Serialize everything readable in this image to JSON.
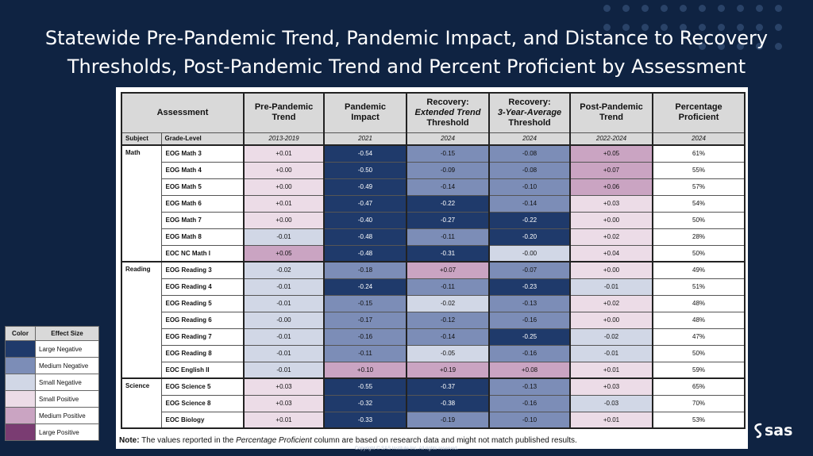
{
  "title_line1": "Statewide Pre-Pandemic Trend, Pandemic Impact, and Distance to Recovery",
  "title_line2": "Thresholds, Post-Pandemic Trend and Percent Proficient  by Assessment",
  "colors": {
    "background": "#0f2342",
    "Large Negative": "#1f3a6b",
    "Medium Negative": "#7c8db7",
    "Small Negative": "#d1d7e6",
    "Small Positive": "#ecdce7",
    "Medium Positive": "#caa4c2",
    "Large Positive": "#7a3c72"
  },
  "legend": {
    "header_color": "Color",
    "header_effect": "Effect Size",
    "items": [
      {
        "label": "Large Negative",
        "color": "#1f3a6b"
      },
      {
        "label": "Medium Negative",
        "color": "#7c8db7"
      },
      {
        "label": "Small Negative",
        "color": "#d1d7e6"
      },
      {
        "label": "Small Positive",
        "color": "#ecdce7"
      },
      {
        "label": "Medium Positive",
        "color": "#caa4c2"
      },
      {
        "label": "Large Positive",
        "color": "#7a3c72"
      }
    ]
  },
  "table": {
    "assessment_header": "Assessment",
    "subject_header": "Subject",
    "grade_header": "Grade-Level",
    "col_headers": [
      {
        "line1": "Pre-Pandemic",
        "line2": "",
        "line3": "Trend",
        "year": "2013-2019"
      },
      {
        "line1": "Pandemic",
        "line2": "",
        "line3": "Impact",
        "year": "2021"
      },
      {
        "line1": "Recovery:",
        "line2": "Extended Trend",
        "line3": "Threshold",
        "year": "2024"
      },
      {
        "line1": "Recovery:",
        "line2": "3-Year-Average",
        "line3": "Threshold",
        "year": "2024"
      },
      {
        "line1": "Post-Pandemic",
        "line2": "",
        "line3": "Trend",
        "year": "2022-2024"
      },
      {
        "line1": "Percentage",
        "line2": "",
        "line3": "Proficient",
        "year": "2024"
      }
    ]
  },
  "chart_data": {
    "type": "table",
    "columns": [
      "Pre-Pandemic Trend",
      "Pandemic Impact",
      "Recovery: Extended Trend Threshold",
      "Recovery: 3-Year-Average Threshold",
      "Post-Pandemic Trend",
      "Percentage Proficient"
    ],
    "groups": [
      {
        "subject": "Math",
        "rows": [
          {
            "grade": "EOG Math 3",
            "values": [
              "+0.01",
              "-0.54",
              "-0.15",
              "-0.08",
              "+0.05",
              "61%"
            ],
            "effects": [
              "Small Positive",
              "Large Negative",
              "Medium Negative",
              "Medium Negative",
              "Medium Positive"
            ]
          },
          {
            "grade": "EOG Math 4",
            "values": [
              "+0.00",
              "-0.50",
              "-0.09",
              "-0.08",
              "+0.07",
              "55%"
            ],
            "effects": [
              "Small Positive",
              "Large Negative",
              "Medium Negative",
              "Medium Negative",
              "Medium Positive"
            ]
          },
          {
            "grade": "EOG Math 5",
            "values": [
              "+0.00",
              "-0.49",
              "-0.14",
              "-0.10",
              "+0.06",
              "57%"
            ],
            "effects": [
              "Small Positive",
              "Large Negative",
              "Medium Negative",
              "Medium Negative",
              "Medium Positive"
            ]
          },
          {
            "grade": "EOG Math 6",
            "values": [
              "+0.01",
              "-0.47",
              "-0.22",
              "-0.14",
              "+0.03",
              "54%"
            ],
            "effects": [
              "Small Positive",
              "Large Negative",
              "Large Negative",
              "Medium Negative",
              "Small Positive"
            ]
          },
          {
            "grade": "EOG Math 7",
            "values": [
              "+0.00",
              "-0.40",
              "-0.27",
              "-0.22",
              "+0.00",
              "50%"
            ],
            "effects": [
              "Small Positive",
              "Large Negative",
              "Large Negative",
              "Large Negative",
              "Small Positive"
            ]
          },
          {
            "grade": "EOG Math 8",
            "values": [
              "-0.01",
              "-0.48",
              "-0.11",
              "-0.20",
              "+0.02",
              "28%"
            ],
            "effects": [
              "Small Negative",
              "Large Negative",
              "Medium Negative",
              "Large Negative",
              "Small Positive"
            ]
          },
          {
            "grade": "EOC NC Math I",
            "values": [
              "+0.05",
              "-0.48",
              "-0.31",
              "-0.00",
              "+0.04",
              "50%"
            ],
            "effects": [
              "Medium Positive",
              "Large Negative",
              "Large Negative",
              "Small Negative",
              "Small Positive"
            ]
          }
        ]
      },
      {
        "subject": "Reading",
        "rows": [
          {
            "grade": "EOG Reading 3",
            "values": [
              "-0.02",
              "-0.18",
              "+0.07",
              "-0.07",
              "+0.00",
              "49%"
            ],
            "effects": [
              "Small Negative",
              "Medium Negative",
              "Medium Positive",
              "Medium Negative",
              "Small Positive"
            ]
          },
          {
            "grade": "EOG Reading 4",
            "values": [
              "-0.01",
              "-0.24",
              "-0.11",
              "-0.23",
              "-0.01",
              "51%"
            ],
            "effects": [
              "Small Negative",
              "Large Negative",
              "Medium Negative",
              "Large Negative",
              "Small Negative"
            ]
          },
          {
            "grade": "EOG Reading 5",
            "values": [
              "-0.01",
              "-0.15",
              "-0.02",
              "-0.13",
              "+0.02",
              "48%"
            ],
            "effects": [
              "Small Negative",
              "Medium Negative",
              "Small Negative",
              "Medium Negative",
              "Small Positive"
            ]
          },
          {
            "grade": "EOG Reading 6",
            "values": [
              "-0.00",
              "-0.17",
              "-0.12",
              "-0.16",
              "+0.00",
              "48%"
            ],
            "effects": [
              "Small Negative",
              "Medium Negative",
              "Medium Negative",
              "Medium Negative",
              "Small Positive"
            ]
          },
          {
            "grade": "EOG Reading 7",
            "values": [
              "-0.01",
              "-0.16",
              "-0.14",
              "-0.25",
              "-0.02",
              "47%"
            ],
            "effects": [
              "Small Negative",
              "Medium Negative",
              "Medium Negative",
              "Large Negative",
              "Small Negative"
            ]
          },
          {
            "grade": "EOG Reading 8",
            "values": [
              "-0.01",
              "-0.11",
              "-0.05",
              "-0.16",
              "-0.01",
              "50%"
            ],
            "effects": [
              "Small Negative",
              "Medium Negative",
              "Small Negative",
              "Medium Negative",
              "Small Negative"
            ]
          },
          {
            "grade": "EOC English II",
            "values": [
              "-0.01",
              "+0.10",
              "+0.19",
              "+0.08",
              "+0.01",
              "59%"
            ],
            "effects": [
              "Small Negative",
              "Medium Positive",
              "Medium Positive",
              "Medium Positive",
              "Small Positive"
            ]
          }
        ]
      },
      {
        "subject": "Science",
        "rows": [
          {
            "grade": "EOG Science 5",
            "values": [
              "+0.03",
              "-0.55",
              "-0.37",
              "-0.13",
              "+0.03",
              "65%"
            ],
            "effects": [
              "Small Positive",
              "Large Negative",
              "Large Negative",
              "Medium Negative",
              "Small Positive"
            ]
          },
          {
            "grade": "EOG Science 8",
            "values": [
              "+0.03",
              "-0.32",
              "-0.38",
              "-0.16",
              "-0.03",
              "70%"
            ],
            "effects": [
              "Small Positive",
              "Large Negative",
              "Large Negative",
              "Medium Negative",
              "Small Negative"
            ]
          },
          {
            "grade": "EOC Biology",
            "values": [
              "+0.01",
              "-0.33",
              "-0.19",
              "-0.10",
              "+0.01",
              "53%"
            ],
            "effects": [
              "Small Positive",
              "Large Negative",
              "Medium Negative",
              "Medium Negative",
              "Small Positive"
            ]
          }
        ]
      }
    ]
  },
  "note": {
    "label": "Note:",
    "text_before": " The values reported in the ",
    "italic": "Percentage Proficient",
    "text_after": " column are based on research data and might not match published results."
  },
  "copyright": "Copyright © SAS Institute Inc. All rights reserved.",
  "logo": "sas"
}
